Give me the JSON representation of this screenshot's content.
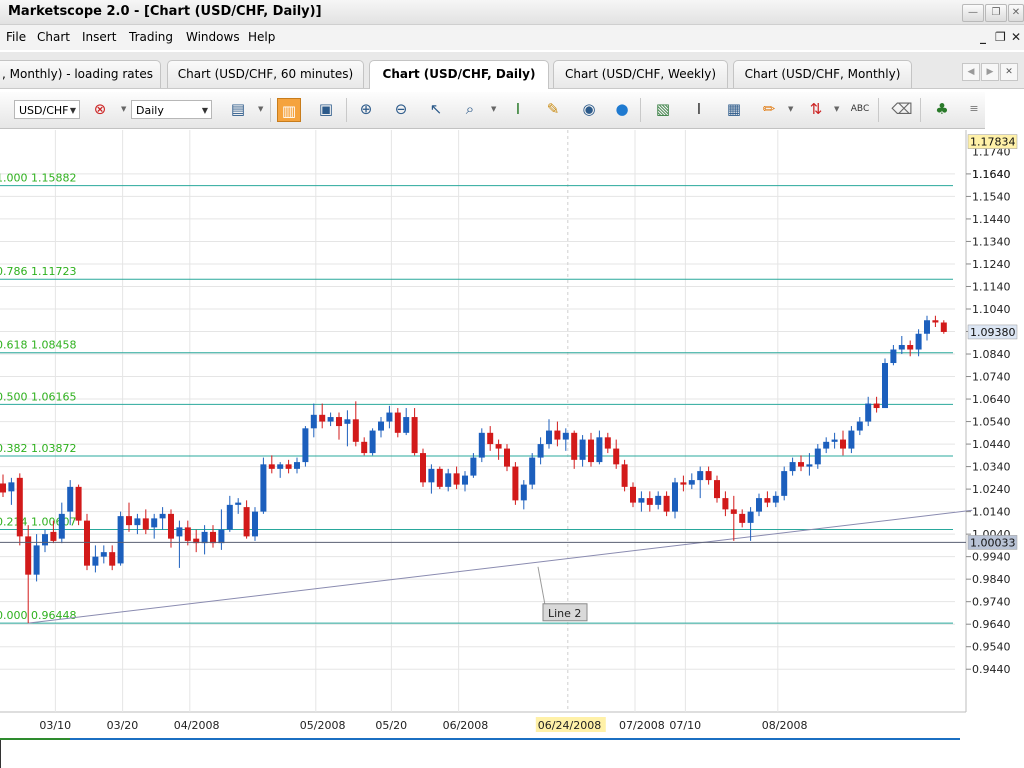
{
  "window": {
    "title": "Marketscope 2.0 - [Chart (USD/CHF, Daily)]",
    "buttons": {
      "minimize": "—",
      "restore": "❐",
      "close": "✕"
    }
  },
  "menu": {
    "items": [
      "File",
      "Chart",
      "Insert",
      "Trading",
      "Windows",
      "Help"
    ],
    "mdi_buttons": {
      "minimize": "_",
      "restore": "❐",
      "close": "✕"
    }
  },
  "tabs": [
    {
      "label": ", Monthly)  - loading rates",
      "active": false
    },
    {
      "label": "Chart (USD/CHF, 60 minutes)",
      "active": false
    },
    {
      "label": "Chart (USD/CHF, Daily)",
      "active": true
    },
    {
      "label": "Chart (USD/CHF, Weekly)",
      "active": false
    },
    {
      "label": "Chart (USD/CHF, Monthly)",
      "active": false
    }
  ],
  "tab_nav": {
    "prev": "◀",
    "next": "▶",
    "close": "✕"
  },
  "toolbar": {
    "instrument": "USD/CHF",
    "period": "Daily",
    "icons": [
      "bar-chart-type",
      "remove-indicator",
      "chart-style",
      "candle-view",
      "text-view",
      "zoom-in",
      "zoom-out",
      "cursor",
      "zoom-area",
      "line-tool",
      "note",
      "eye",
      "globe",
      "screenshot",
      "text-tool",
      "indicators",
      "pencil",
      "trade",
      "abc",
      "eraser",
      "tree"
    ]
  },
  "colors": {
    "bull": "#1c5fbd",
    "bear": "#d21a1a",
    "fib_line": "#29a89c",
    "fib_label": "#2fb11e",
    "grid": "#e5e5e5",
    "trendline": "#8a8bb0",
    "current_price_bg": "#fff1a8",
    "last_price_bg": "#dce6f4",
    "line_price_bg": "#b9c3d6"
  },
  "chart_data": {
    "type": "candlestick",
    "instrument": "USD/CHF",
    "timeframe": "Daily",
    "ylim": [
      0.925,
      1.1835
    ],
    "y_ticks": [
      "1.1640",
      "1.1540",
      "1.1440",
      "1.1340",
      "1.1240",
      "1.1140",
      "1.1040",
      "1.0940",
      "1.0840",
      "1.0740",
      "1.0640",
      "1.0540",
      "1.0440",
      "1.0340",
      "1.0240",
      "1.0140",
      "1.0040",
      "0.9940",
      "0.9840",
      "0.9740",
      "0.9640",
      "0.9540",
      "0.9440"
    ],
    "y_ticks_partial": [
      "1.1640",
      "1.1740"
    ],
    "x_labels": [
      "03/10",
      "03/20",
      "04/2008",
      "05/2008",
      "05/20",
      "06/2008",
      "06/24/2008",
      "07/2008",
      "07/10",
      "08/2008"
    ],
    "x_label_index": [
      6,
      14,
      22,
      37,
      46,
      54,
      67,
      75,
      81,
      92
    ],
    "highlighted_x_label": "06/24/2008",
    "current_price": "1.17834",
    "last_price": "1.09380",
    "trendline_price": "1.00033",
    "fibonacci": [
      {
        "level": "1.000",
        "price": "1.15882"
      },
      {
        "level": "0.786",
        "price": "1.11723"
      },
      {
        "level": "0.618",
        "price": "1.08458"
      },
      {
        "level": "0.500",
        "price": "1.06165"
      },
      {
        "level": "0.382",
        "price": "1.03872"
      },
      {
        "level": "0.214",
        "price": "1.00607"
      },
      {
        "level": "0.000",
        "price": "0.96448"
      }
    ],
    "trendline": {
      "name": "Line 2",
      "start": {
        "index": 3,
        "price": 0.9645
      },
      "end": {
        "index": 103,
        "price": 1.0115
      }
    },
    "candles": [
      {
        "o": 1.0265,
        "h": 1.0305,
        "l": 1.0205,
        "c": 1.0225
      },
      {
        "o": 1.023,
        "h": 1.029,
        "l": 1.017,
        "c": 1.027
      },
      {
        "o": 1.029,
        "h": 1.031,
        "l": 0.999,
        "c": 1.003
      },
      {
        "o": 1.003,
        "h": 1.008,
        "l": 0.9645,
        "c": 0.986
      },
      {
        "o": 0.986,
        "h": 1.004,
        "l": 0.983,
        "c": 0.999
      },
      {
        "o": 0.999,
        "h": 1.006,
        "l": 0.996,
        "c": 1.004
      },
      {
        "o": 1.005,
        "h": 1.01,
        "l": 1.0,
        "c": 1.001
      },
      {
        "o": 1.002,
        "h": 1.018,
        "l": 1.0,
        "c": 1.013
      },
      {
        "o": 1.014,
        "h": 1.028,
        "l": 1.008,
        "c": 1.025
      },
      {
        "o": 1.025,
        "h": 1.026,
        "l": 1.008,
        "c": 1.01
      },
      {
        "o": 1.01,
        "h": 1.013,
        "l": 0.988,
        "c": 0.99
      },
      {
        "o": 0.99,
        "h": 0.999,
        "l": 0.987,
        "c": 0.994
      },
      {
        "o": 0.994,
        "h": 0.999,
        "l": 0.991,
        "c": 0.996
      },
      {
        "o": 0.996,
        "h": 0.999,
        "l": 0.988,
        "c": 0.99
      },
      {
        "o": 0.991,
        "h": 1.014,
        "l": 0.99,
        "c": 1.012
      },
      {
        "o": 1.012,
        "h": 1.018,
        "l": 1.005,
        "c": 1.008
      },
      {
        "o": 1.008,
        "h": 1.013,
        "l": 1.004,
        "c": 1.011
      },
      {
        "o": 1.011,
        "h": 1.015,
        "l": 1.004,
        "c": 1.006
      },
      {
        "o": 1.007,
        "h": 1.013,
        "l": 1.002,
        "c": 1.011
      },
      {
        "o": 1.011,
        "h": 1.016,
        "l": 1.006,
        "c": 1.013
      },
      {
        "o": 1.013,
        "h": 1.015,
        "l": 0.998,
        "c": 1.002
      },
      {
        "o": 1.003,
        "h": 1.01,
        "l": 0.989,
        "c": 1.007
      },
      {
        "o": 1.007,
        "h": 1.01,
        "l": 0.999,
        "c": 1.001
      },
      {
        "o": 1.002,
        "h": 1.006,
        "l": 0.996,
        "c": 1.0
      },
      {
        "o": 1.0,
        "h": 1.008,
        "l": 0.995,
        "c": 1.005
      },
      {
        "o": 1.005,
        "h": 1.008,
        "l": 0.998,
        "c": 1.0
      },
      {
        "o": 1.0,
        "h": 1.015,
        "l": 0.997,
        "c": 1.006
      },
      {
        "o": 1.006,
        "h": 1.021,
        "l": 1.005,
        "c": 1.017
      },
      {
        "o": 1.017,
        "h": 1.02,
        "l": 1.013,
        "c": 1.018
      },
      {
        "o": 1.016,
        "h": 1.019,
        "l": 1.002,
        "c": 1.003
      },
      {
        "o": 1.003,
        "h": 1.016,
        "l": 1.001,
        "c": 1.014
      },
      {
        "o": 1.014,
        "h": 1.038,
        "l": 1.013,
        "c": 1.035
      },
      {
        "o": 1.035,
        "h": 1.039,
        "l": 1.031,
        "c": 1.033
      },
      {
        "o": 1.033,
        "h": 1.036,
        "l": 1.029,
        "c": 1.035
      },
      {
        "o": 1.035,
        "h": 1.037,
        "l": 1.031,
        "c": 1.033
      },
      {
        "o": 1.033,
        "h": 1.038,
        "l": 1.031,
        "c": 1.036
      },
      {
        "o": 1.036,
        "h": 1.052,
        "l": 1.034,
        "c": 1.051
      },
      {
        "o": 1.051,
        "h": 1.062,
        "l": 1.047,
        "c": 1.057
      },
      {
        "o": 1.057,
        "h": 1.062,
        "l": 1.051,
        "c": 1.054
      },
      {
        "o": 1.054,
        "h": 1.058,
        "l": 1.052,
        "c": 1.056
      },
      {
        "o": 1.056,
        "h": 1.058,
        "l": 1.046,
        "c": 1.052
      },
      {
        "o": 1.053,
        "h": 1.059,
        "l": 1.043,
        "c": 1.055
      },
      {
        "o": 1.055,
        "h": 1.063,
        "l": 1.043,
        "c": 1.045
      },
      {
        "o": 1.045,
        "h": 1.047,
        "l": 1.039,
        "c": 1.04
      },
      {
        "o": 1.04,
        "h": 1.051,
        "l": 1.039,
        "c": 1.05
      },
      {
        "o": 1.05,
        "h": 1.056,
        "l": 1.047,
        "c": 1.054
      },
      {
        "o": 1.054,
        "h": 1.061,
        "l": 1.051,
        "c": 1.058
      },
      {
        "o": 1.058,
        "h": 1.06,
        "l": 1.047,
        "c": 1.049
      },
      {
        "o": 1.049,
        "h": 1.06,
        "l": 1.048,
        "c": 1.056
      },
      {
        "o": 1.056,
        "h": 1.06,
        "l": 1.039,
        "c": 1.04
      },
      {
        "o": 1.04,
        "h": 1.042,
        "l": 1.025,
        "c": 1.027
      },
      {
        "o": 1.027,
        "h": 1.035,
        "l": 1.022,
        "c": 1.033
      },
      {
        "o": 1.033,
        "h": 1.034,
        "l": 1.024,
        "c": 1.025
      },
      {
        "o": 1.025,
        "h": 1.033,
        "l": 1.023,
        "c": 1.031
      },
      {
        "o": 1.031,
        "h": 1.034,
        "l": 1.024,
        "c": 1.026
      },
      {
        "o": 1.026,
        "h": 1.032,
        "l": 1.023,
        "c": 1.03
      },
      {
        "o": 1.03,
        "h": 1.04,
        "l": 1.029,
        "c": 1.038
      },
      {
        "o": 1.038,
        "h": 1.051,
        "l": 1.036,
        "c": 1.049
      },
      {
        "o": 1.049,
        "h": 1.052,
        "l": 1.041,
        "c": 1.044
      },
      {
        "o": 1.044,
        "h": 1.046,
        "l": 1.037,
        "c": 1.042
      },
      {
        "o": 1.042,
        "h": 1.044,
        "l": 1.032,
        "c": 1.034
      },
      {
        "o": 1.034,
        "h": 1.036,
        "l": 1.017,
        "c": 1.019
      },
      {
        "o": 1.019,
        "h": 1.028,
        "l": 1.015,
        "c": 1.026
      },
      {
        "o": 1.026,
        "h": 1.04,
        "l": 1.024,
        "c": 1.038
      },
      {
        "o": 1.038,
        "h": 1.047,
        "l": 1.035,
        "c": 1.044
      },
      {
        "o": 1.044,
        "h": 1.055,
        "l": 1.042,
        "c": 1.05
      },
      {
        "o": 1.05,
        "h": 1.054,
        "l": 1.043,
        "c": 1.046
      },
      {
        "o": 1.046,
        "h": 1.051,
        "l": 1.041,
        "c": 1.049
      },
      {
        "o": 1.049,
        "h": 1.05,
        "l": 1.033,
        "c": 1.037
      },
      {
        "o": 1.037,
        "h": 1.048,
        "l": 1.034,
        "c": 1.046
      },
      {
        "o": 1.046,
        "h": 1.049,
        "l": 1.034,
        "c": 1.036
      },
      {
        "o": 1.036,
        "h": 1.05,
        "l": 1.035,
        "c": 1.047
      },
      {
        "o": 1.047,
        "h": 1.049,
        "l": 1.04,
        "c": 1.042
      },
      {
        "o": 1.042,
        "h": 1.046,
        "l": 1.033,
        "c": 1.035
      },
      {
        "o": 1.035,
        "h": 1.037,
        "l": 1.023,
        "c": 1.025
      },
      {
        "o": 1.025,
        "h": 1.027,
        "l": 1.016,
        "c": 1.018
      },
      {
        "o": 1.018,
        "h": 1.023,
        "l": 1.014,
        "c": 1.02
      },
      {
        "o": 1.02,
        "h": 1.023,
        "l": 1.014,
        "c": 1.017
      },
      {
        "o": 1.017,
        "h": 1.023,
        "l": 1.015,
        "c": 1.021
      },
      {
        "o": 1.021,
        "h": 1.023,
        "l": 1.012,
        "c": 1.014
      },
      {
        "o": 1.014,
        "h": 1.029,
        "l": 1.011,
        "c": 1.027
      },
      {
        "o": 1.027,
        "h": 1.03,
        "l": 1.023,
        "c": 1.026
      },
      {
        "o": 1.026,
        "h": 1.031,
        "l": 1.024,
        "c": 1.028
      },
      {
        "o": 1.028,
        "h": 1.034,
        "l": 1.02,
        "c": 1.032
      },
      {
        "o": 1.032,
        "h": 1.034,
        "l": 1.026,
        "c": 1.028
      },
      {
        "o": 1.028,
        "h": 1.03,
        "l": 1.018,
        "c": 1.02
      },
      {
        "o": 1.02,
        "h": 1.023,
        "l": 1.012,
        "c": 1.015
      },
      {
        "o": 1.015,
        "h": 1.021,
        "l": 1.001,
        "c": 1.013
      },
      {
        "o": 1.013,
        "h": 1.015,
        "l": 1.007,
        "c": 1.009
      },
      {
        "o": 1.009,
        "h": 1.016,
        "l": 1.001,
        "c": 1.014
      },
      {
        "o": 1.014,
        "h": 1.022,
        "l": 1.012,
        "c": 1.02
      },
      {
        "o": 1.02,
        "h": 1.023,
        "l": 1.016,
        "c": 1.018
      },
      {
        "o": 1.018,
        "h": 1.023,
        "l": 1.016,
        "c": 1.021
      },
      {
        "o": 1.021,
        "h": 1.034,
        "l": 1.019,
        "c": 1.032
      },
      {
        "o": 1.032,
        "h": 1.038,
        "l": 1.03,
        "c": 1.036
      },
      {
        "o": 1.036,
        "h": 1.039,
        "l": 1.032,
        "c": 1.034
      },
      {
        "o": 1.034,
        "h": 1.04,
        "l": 1.03,
        "c": 1.035
      },
      {
        "o": 1.035,
        "h": 1.044,
        "l": 1.033,
        "c": 1.042
      },
      {
        "o": 1.042,
        "h": 1.047,
        "l": 1.04,
        "c": 1.045
      },
      {
        "o": 1.045,
        "h": 1.049,
        "l": 1.042,
        "c": 1.046
      },
      {
        "o": 1.046,
        "h": 1.05,
        "l": 1.039,
        "c": 1.042
      },
      {
        "o": 1.042,
        "h": 1.052,
        "l": 1.04,
        "c": 1.05
      },
      {
        "o": 1.05,
        "h": 1.056,
        "l": 1.048,
        "c": 1.054
      },
      {
        "o": 1.054,
        "h": 1.065,
        "l": 1.052,
        "c": 1.062
      },
      {
        "o": 1.062,
        "h": 1.065,
        "l": 1.058,
        "c": 1.06
      },
      {
        "o": 1.06,
        "h": 1.082,
        "l": 1.06,
        "c": 1.08
      },
      {
        "o": 1.08,
        "h": 1.088,
        "l": 1.079,
        "c": 1.086
      },
      {
        "o": 1.086,
        "h": 1.092,
        "l": 1.084,
        "c": 1.088
      },
      {
        "o": 1.088,
        "h": 1.09,
        "l": 1.083,
        "c": 1.086
      },
      {
        "o": 1.086,
        "h": 1.095,
        "l": 1.083,
        "c": 1.093
      },
      {
        "o": 1.093,
        "h": 1.101,
        "l": 1.09,
        "c": 1.099
      },
      {
        "o": 1.099,
        "h": 1.101,
        "l": 1.096,
        "c": 1.098
      },
      {
        "o": 1.098,
        "h": 1.099,
        "l": 1.093,
        "c": 1.0938
      }
    ]
  }
}
